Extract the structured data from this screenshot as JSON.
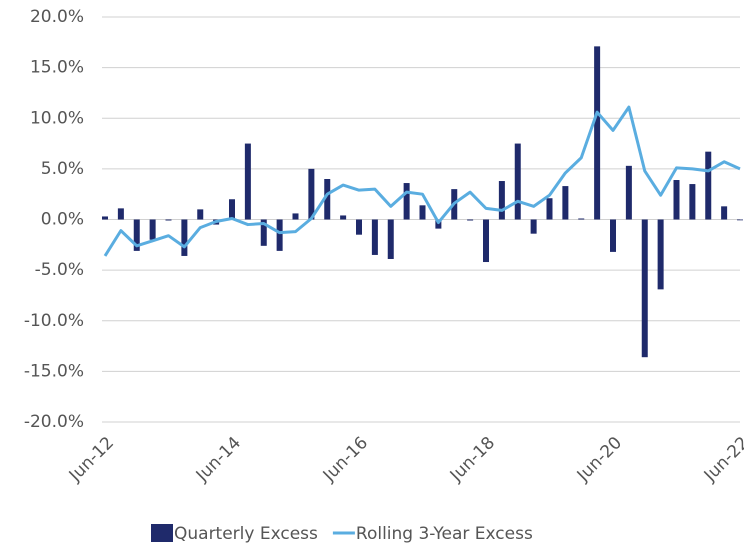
{
  "chart_data": {
    "type": "bar-line",
    "categories": [
      "Jun-12",
      null,
      null,
      null,
      null,
      null,
      null,
      null,
      "Jun-14",
      null,
      null,
      null,
      null,
      null,
      null,
      null,
      "Jun-16",
      null,
      null,
      null,
      null,
      null,
      null,
      null,
      "Jun-18",
      null,
      null,
      null,
      null,
      null,
      null,
      null,
      "Jun-20",
      null,
      null,
      null,
      null,
      null,
      null,
      null,
      "Jun-22"
    ],
    "series": [
      {
        "name": "Quarterly Excess",
        "type": "bar",
        "color": "#1f2a6b",
        "values": [
          0.3,
          1.1,
          -3.1,
          -2.0,
          -0.1,
          -3.6,
          1.0,
          -0.5,
          2.0,
          7.5,
          -2.6,
          -3.1,
          0.6,
          5.0,
          4.0,
          0.4,
          -1.5,
          -3.5,
          -3.9,
          3.6,
          1.4,
          -0.9,
          3.0,
          -0.1,
          -4.2,
          3.8,
          7.5,
          -1.4,
          2.1,
          3.3,
          0.1,
          17.1,
          -3.2,
          5.3,
          -13.6,
          -6.9,
          3.9,
          3.5,
          6.7,
          1.3,
          0.0
        ]
      },
      {
        "name": "Rolling 3-Year Excess",
        "type": "line",
        "color": "#5aade0",
        "values": [
          -3.6,
          -1.1,
          -2.6,
          -2.1,
          -1.6,
          -2.7,
          -0.8,
          -0.2,
          0.1,
          -0.5,
          -0.4,
          -1.3,
          -1.2,
          0.1,
          2.5,
          3.4,
          2.9,
          3.0,
          1.3,
          2.7,
          2.5,
          -0.3,
          1.6,
          2.7,
          1.1,
          0.9,
          1.8,
          1.3,
          2.4,
          4.6,
          6.1,
          10.6,
          8.8,
          11.1,
          4.8,
          2.4,
          5.1,
          5.0,
          4.8,
          5.7,
          5.0
        ]
      }
    ],
    "ylim": [
      -20,
      20
    ],
    "yticks": [
      {
        "value": -20,
        "label": "-20.0%"
      },
      {
        "value": -15,
        "label": "-15.0%"
      },
      {
        "value": -10,
        "label": "-10.0%"
      },
      {
        "value": -5,
        "label": "-5.0%"
      },
      {
        "value": 0,
        "label": "0.0%"
      },
      {
        "value": 5,
        "label": "5.0%"
      },
      {
        "value": 10,
        "label": "10.0%"
      },
      {
        "value": 15,
        "label": "15.0%"
      },
      {
        "value": 20,
        "label": "20.0%"
      }
    ],
    "grid": true,
    "legend": "bottom"
  }
}
